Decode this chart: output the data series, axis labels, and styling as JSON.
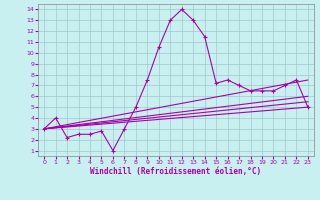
{
  "xlabel": "Windchill (Refroidissement éolien,°C)",
  "bg_color": "#c8f0f0",
  "grid_color": "#a0c8c8",
  "line_color": "#aa00aa",
  "xlim": [
    -0.5,
    23.5
  ],
  "ylim": [
    0.5,
    14.5
  ],
  "xticks": [
    0,
    1,
    2,
    3,
    4,
    5,
    6,
    7,
    8,
    9,
    10,
    11,
    12,
    13,
    14,
    15,
    16,
    17,
    18,
    19,
    20,
    21,
    22,
    23
  ],
  "yticks": [
    1,
    2,
    3,
    4,
    5,
    6,
    7,
    8,
    9,
    10,
    11,
    12,
    13,
    14
  ],
  "main_x": [
    0,
    1,
    2,
    3,
    4,
    5,
    6,
    7,
    8,
    9,
    10,
    11,
    12,
    13,
    14,
    15,
    16,
    17,
    18,
    19,
    20,
    21,
    22,
    23
  ],
  "main_y": [
    3.0,
    4.0,
    2.2,
    2.5,
    2.5,
    2.8,
    1.0,
    3.0,
    5.0,
    7.5,
    10.5,
    13.0,
    14.0,
    13.0,
    11.5,
    7.2,
    7.5,
    7.0,
    6.5,
    6.5,
    6.5,
    7.0,
    7.5,
    5.0
  ],
  "straight_lines": [
    {
      "x": [
        0,
        23
      ],
      "y": [
        3.0,
        7.5
      ]
    },
    {
      "x": [
        0,
        23
      ],
      "y": [
        3.0,
        6.0
      ]
    },
    {
      "x": [
        0,
        23
      ],
      "y": [
        3.0,
        5.5
      ]
    },
    {
      "x": [
        0,
        23
      ],
      "y": [
        3.0,
        5.0
      ]
    }
  ]
}
